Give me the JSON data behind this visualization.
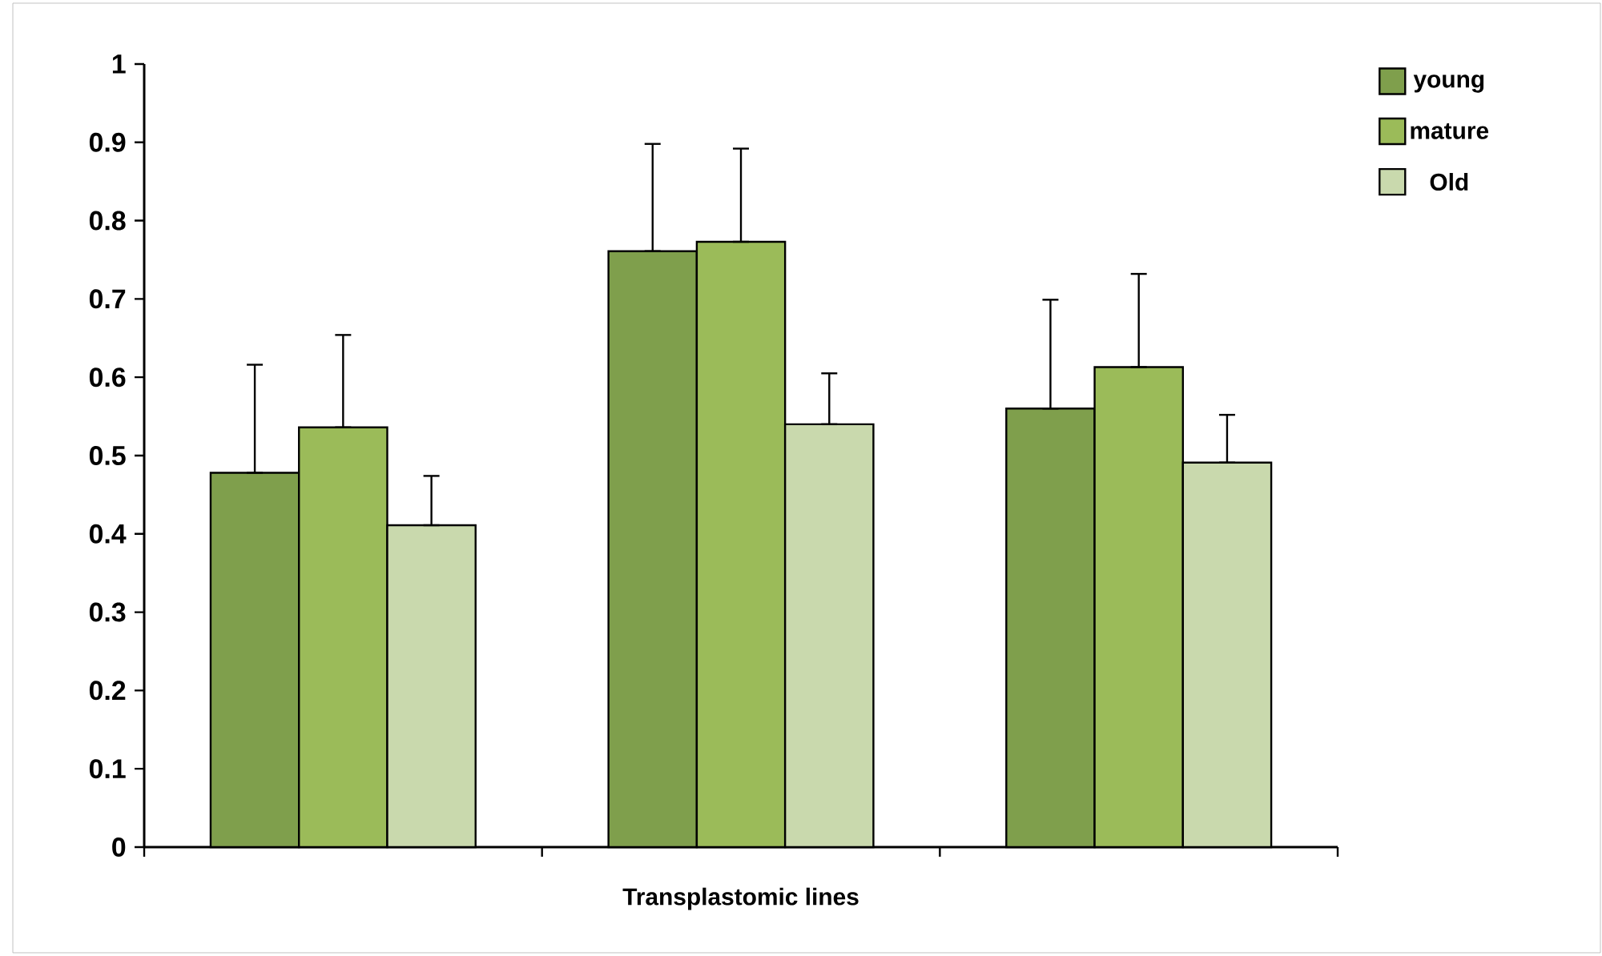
{
  "chart_data": {
    "type": "bar",
    "xlabel": "Transplastomic lines",
    "categories": [
      null,
      null,
      null
    ],
    "series": [
      {
        "name": "young",
        "color": "#7f9f4c",
        "values": [
          0.478,
          0.761,
          0.56
        ],
        "errors": [
          [
            0.478,
            0.616
          ],
          [
            0.761,
            0.898
          ],
          [
            0.56,
            0.699
          ]
        ]
      },
      {
        "name": "mature",
        "color": "#9bbb59",
        "values": [
          0.536,
          0.773,
          0.613
        ],
        "errors": [
          [
            0.536,
            0.654
          ],
          [
            0.773,
            0.892
          ],
          [
            0.613,
            0.732
          ]
        ]
      },
      {
        "name": "Old",
        "color": "#c9d9ad",
        "values": [
          0.411,
          0.54,
          0.491
        ],
        "errors": [
          [
            0.411,
            0.474
          ],
          [
            0.54,
            0.605
          ],
          [
            0.491,
            0.552
          ]
        ]
      }
    ],
    "ylim": [
      0,
      1
    ],
    "yticks": [
      0,
      0.1,
      0.2,
      0.3,
      0.4,
      0.5,
      0.6,
      0.7,
      0.8,
      0.9,
      1
    ],
    "legend": "top right",
    "grid": false
  }
}
